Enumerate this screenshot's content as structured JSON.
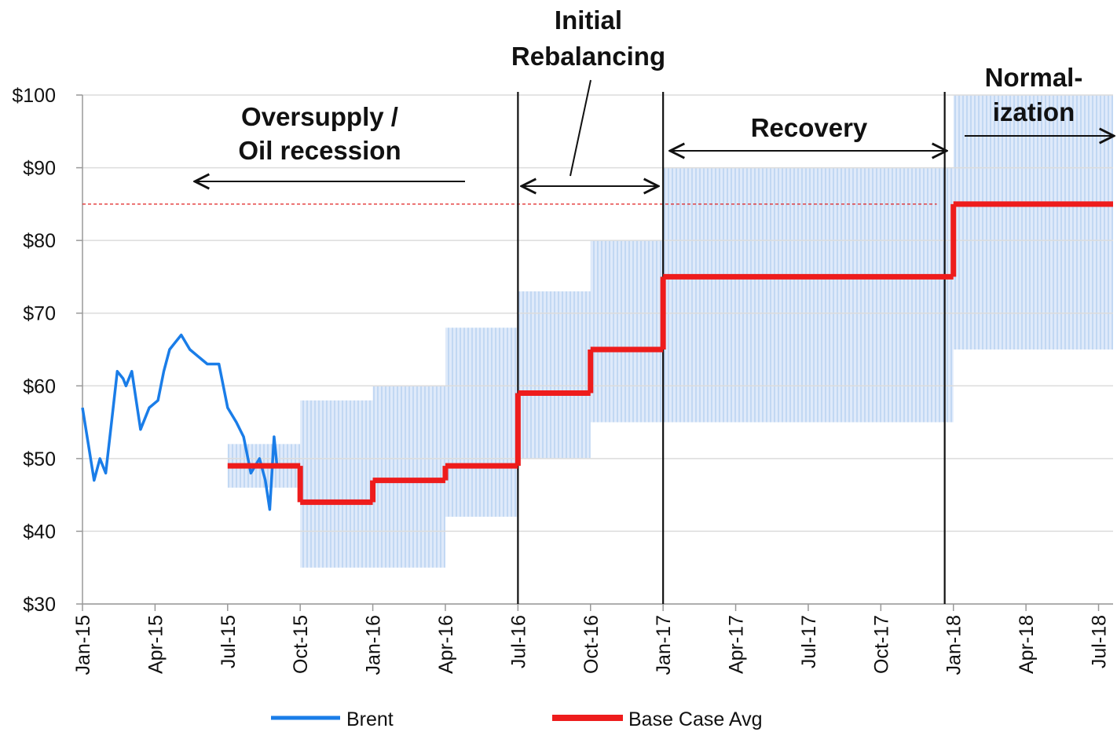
{
  "chart_data": {
    "type": "line",
    "xlim": [
      2015,
      2018.55
    ],
    "ylim": [
      30,
      100
    ],
    "xticks": [
      {
        "value": 2015,
        "label": "Jan-15"
      },
      {
        "value": 2015.25,
        "label": "Apr-15"
      },
      {
        "value": 2015.5,
        "label": "Jul-15"
      },
      {
        "value": 2015.75,
        "label": "Oct-15"
      },
      {
        "value": 2016,
        "label": "Jan-16"
      },
      {
        "value": 2016.25,
        "label": "Apr-16"
      },
      {
        "value": 2016.5,
        "label": "Jul-16"
      },
      {
        "value": 2016.75,
        "label": "Oct-16"
      },
      {
        "value": 2017,
        "label": "Jan-17"
      },
      {
        "value": 2017.25,
        "label": "Apr-17"
      },
      {
        "value": 2017.5,
        "label": "Jul-17"
      },
      {
        "value": 2017.75,
        "label": "Oct-17"
      },
      {
        "value": 2018,
        "label": "Jan-18"
      },
      {
        "value": 2018.25,
        "label": "Apr-18"
      },
      {
        "value": 2018.5,
        "label": "Jul-18"
      }
    ],
    "yticks": [
      {
        "value": 30,
        "label": "$30"
      },
      {
        "value": 40,
        "label": "$40"
      },
      {
        "value": 50,
        "label": "$50"
      },
      {
        "value": 60,
        "label": "$60"
      },
      {
        "value": 70,
        "label": "$70"
      },
      {
        "value": 80,
        "label": "$80"
      },
      {
        "value": 90,
        "label": "$90"
      },
      {
        "value": 100,
        "label": "$100"
      }
    ],
    "grid": true,
    "brent": {
      "name": "Brent",
      "color": "#1a7de8",
      "x": [
        2015.0,
        2015.02,
        2015.04,
        2015.06,
        2015.08,
        2015.1,
        2015.12,
        2015.14,
        2015.15,
        2015.17,
        2015.2,
        2015.23,
        2015.26,
        2015.28,
        2015.3,
        2015.32,
        2015.34,
        2015.37,
        2015.4,
        2015.43,
        2015.47,
        2015.5,
        2015.53,
        2015.555,
        2015.58,
        2015.61,
        2015.63,
        2015.645,
        2015.66,
        2015.67
      ],
      "values": [
        57,
        52,
        47,
        50,
        48,
        55,
        62,
        61,
        60,
        62,
        54,
        57,
        58,
        62,
        65,
        66,
        67,
        65,
        64,
        63,
        63,
        57,
        55,
        53,
        48,
        50,
        47,
        43,
        53,
        49
      ]
    },
    "base_case": {
      "name": "Base Case Avg",
      "color": "#ee1c1c",
      "range_color": "#cfe2f7",
      "start": [
        2015.5,
        2015.75,
        2016.0,
        2016.25,
        2016.5,
        2016.75,
        2017.0,
        2018.0
      ],
      "end": [
        2015.75,
        2016.0,
        2016.25,
        2016.5,
        2016.75,
        2017.0,
        2018.0,
        2018.55
      ],
      "values": [
        49,
        44,
        47,
        49,
        59,
        65,
        75,
        85
      ],
      "low": [
        46,
        35,
        35,
        42,
        50,
        55,
        55,
        65
      ],
      "high": [
        52,
        58,
        60,
        68,
        73,
        80,
        90,
        100
      ]
    },
    "reference_line": 85,
    "dividers": [
      2016.5,
      2017.0,
      2017.97
    ],
    "annotations": [
      "Oversupply /",
      "Oil recession",
      "Initial",
      "Rebalancing",
      "Recovery",
      "Normal-",
      "ization"
    ]
  }
}
